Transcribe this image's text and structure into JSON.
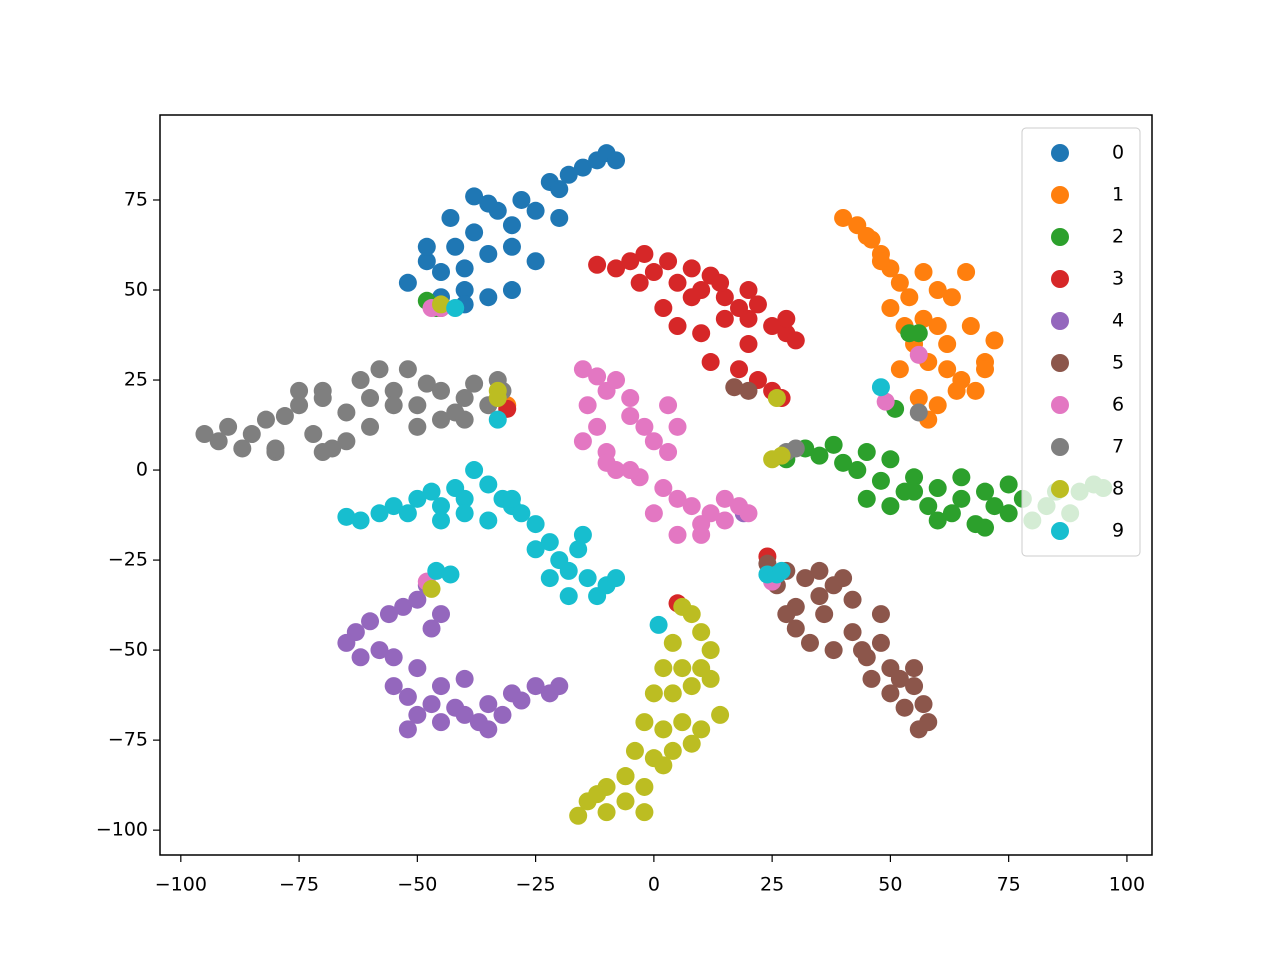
{
  "chart_data": {
    "type": "scatter",
    "xlim": [
      -104.4,
      105.3
    ],
    "ylim": [
      -106.9,
      98.6
    ],
    "xticks": [
      {
        "value": -100,
        "label": "−100"
      },
      {
        "value": -75,
        "label": "−75"
      },
      {
        "value": -50,
        "label": "−50"
      },
      {
        "value": -25,
        "label": "−25"
      },
      0,
      25,
      50,
      75,
      100
    ],
    "yticks": [
      {
        "value": -100,
        "label": "−100"
      },
      {
        "value": -75,
        "label": "−75"
      },
      {
        "value": -50,
        "label": "−50"
      },
      {
        "value": -25,
        "label": "−25"
      },
      0,
      25,
      50,
      75
    ],
    "legend": "upper right",
    "series": [
      {
        "name": "0",
        "color": "#1f77b4",
        "x": [
          -52,
          -48,
          -45,
          -42,
          -40,
          -38,
          -35,
          -33,
          -30,
          -28,
          -25,
          -22,
          -20,
          -18,
          -15,
          -12,
          -10,
          -8,
          -45,
          -40,
          -35,
          -30,
          -25,
          -40,
          -35,
          -48,
          -43,
          -38,
          -30,
          -20
        ],
        "y": [
          52,
          58,
          55,
          62,
          50,
          66,
          60,
          72,
          68,
          75,
          72,
          80,
          78,
          82,
          84,
          86,
          88,
          86,
          48,
          46,
          48,
          50,
          58,
          56,
          74,
          62,
          70,
          76,
          62,
          70
        ]
      },
      {
        "name": "1",
        "color": "#ff7f0e",
        "x": [
          40,
          43,
          46,
          48,
          50,
          52,
          50,
          54,
          57,
          60,
          55,
          58,
          62,
          65,
          68,
          70,
          72,
          60,
          63,
          66,
          52,
          56,
          60,
          64,
          58,
          62,
          45,
          48,
          53,
          57,
          70,
          67,
          -31
        ],
        "y": [
          70,
          68,
          64,
          60,
          56,
          52,
          45,
          48,
          42,
          40,
          35,
          30,
          28,
          25,
          22,
          30,
          36,
          50,
          48,
          55,
          28,
          20,
          18,
          22,
          14,
          35,
          65,
          58,
          40,
          55,
          28,
          40,
          18
        ]
      },
      {
        "name": "2",
        "color": "#2ca02c",
        "x": [
          28,
          32,
          35,
          38,
          40,
          43,
          45,
          48,
          50,
          53,
          55,
          58,
          60,
          63,
          65,
          68,
          70,
          72,
          75,
          78,
          80,
          83,
          85,
          88,
          90,
          93,
          95,
          50,
          60,
          70,
          45,
          55,
          65,
          75,
          -48,
          -46,
          54,
          56,
          51
        ],
        "y": [
          3,
          6,
          4,
          7,
          2,
          0,
          5,
          -3,
          3,
          -6,
          -2,
          -10,
          -5,
          -12,
          -8,
          -15,
          -6,
          -10,
          -12,
          -8,
          -14,
          -10,
          -6,
          -12,
          -6,
          -4,
          -5,
          -10,
          -14,
          -16,
          -8,
          -6,
          -2,
          -4,
          47,
          45,
          38,
          38,
          17
        ]
      },
      {
        "name": "3",
        "color": "#d62728",
        "x": [
          -12,
          -8,
          -5,
          -2,
          0,
          3,
          5,
          8,
          10,
          12,
          15,
          18,
          20,
          22,
          25,
          28,
          30,
          2,
          5,
          10,
          15,
          20,
          8,
          12,
          18,
          22,
          25,
          -3,
          28,
          14,
          20,
          -45,
          27,
          -31,
          24,
          5
        ],
        "y": [
          57,
          56,
          58,
          60,
          55,
          58,
          52,
          56,
          50,
          54,
          48,
          45,
          42,
          46,
          40,
          38,
          36,
          45,
          40,
          38,
          42,
          35,
          48,
          30,
          28,
          25,
          22,
          52,
          42,
          52,
          50,
          45,
          20,
          17,
          -24,
          -37
        ]
      },
      {
        "name": "4",
        "color": "#9467bd",
        "x": [
          -48,
          -50,
          -53,
          -56,
          -60,
          -63,
          -65,
          -62,
          -58,
          -55,
          -55,
          -52,
          -50,
          -47,
          -45,
          -42,
          -40,
          -37,
          -35,
          -32,
          -30,
          -28,
          -25,
          -22,
          -20,
          -50,
          -45,
          -40,
          -35,
          -52,
          -45,
          -47,
          19
        ],
        "y": [
          -32,
          -36,
          -38,
          -40,
          -42,
          -45,
          -48,
          -52,
          -50,
          -52,
          -60,
          -63,
          -68,
          -65,
          -70,
          -66,
          -68,
          -70,
          -65,
          -68,
          -62,
          -64,
          -60,
          -62,
          -60,
          -55,
          -60,
          -58,
          -72,
          -72,
          -40,
          -44,
          -12
        ]
      },
      {
        "name": "5",
        "color": "#8c564b",
        "x": [
          24,
          26,
          28,
          30,
          32,
          35,
          38,
          40,
          42,
          30,
          33,
          36,
          38,
          42,
          45,
          48,
          50,
          52,
          55,
          57,
          58,
          56,
          53,
          50,
          46,
          44,
          28,
          35,
          55,
          48,
          17,
          20
        ],
        "y": [
          -26,
          -32,
          -28,
          -38,
          -30,
          -28,
          -32,
          -30,
          -36,
          -44,
          -48,
          -40,
          -50,
          -45,
          -52,
          -48,
          -55,
          -58,
          -60,
          -65,
          -70,
          -72,
          -66,
          -62,
          -58,
          -50,
          -40,
          -35,
          -55,
          -40,
          23,
          22
        ]
      },
      {
        "name": "6",
        "color": "#e377c2",
        "x": [
          -15,
          -12,
          -10,
          -14,
          -8,
          -5,
          -12,
          -10,
          -15,
          -5,
          -2,
          0,
          3,
          -8,
          -3,
          2,
          5,
          8,
          10,
          12,
          15,
          18,
          20,
          5,
          10,
          15,
          0,
          -5,
          -10,
          5,
          3,
          -47,
          -45,
          56,
          49,
          -48,
          25
        ],
        "y": [
          28,
          26,
          22,
          18,
          25,
          20,
          12,
          5,
          8,
          15,
          12,
          8,
          5,
          0,
          -2,
          -5,
          -8,
          -10,
          -15,
          -12,
          -8,
          -10,
          -12,
          -18,
          -18,
          -14,
          -12,
          0,
          2,
          12,
          18,
          45,
          45,
          32,
          19,
          -31,
          -31
        ]
      },
      {
        "name": "7",
        "color": "#7f7f7f",
        "x": [
          -95,
          -92,
          -90,
          -87,
          -85,
          -82,
          -80,
          -78,
          -75,
          -72,
          -70,
          -68,
          -65,
          -62,
          -60,
          -58,
          -55,
          -52,
          -50,
          -48,
          -45,
          -42,
          -40,
          -38,
          -35,
          -32,
          -80,
          -70,
          -60,
          -50,
          -40,
          -75,
          -65,
          -55,
          -45,
          -70,
          -33,
          30,
          28,
          56
        ],
        "y": [
          10,
          8,
          12,
          6,
          10,
          14,
          5,
          15,
          18,
          10,
          22,
          6,
          16,
          25,
          20,
          28,
          22,
          28,
          18,
          24,
          22,
          16,
          20,
          24,
          18,
          22,
          6,
          5,
          12,
          12,
          14,
          22,
          8,
          18,
          14,
          20,
          25,
          6,
          5,
          16
        ]
      },
      {
        "name": "8",
        "color": "#bcbd22",
        "x": [
          6,
          8,
          10,
          12,
          4,
          2,
          6,
          10,
          0,
          4,
          8,
          12,
          14,
          -2,
          2,
          6,
          10,
          -4,
          0,
          4,
          8,
          -6,
          -2,
          2,
          -10,
          -6,
          -2,
          -14,
          -10,
          -16,
          -12,
          -6,
          -45,
          -33,
          -33,
          26,
          25,
          27,
          -47
        ],
        "y": [
          -38,
          -40,
          -45,
          -50,
          -48,
          -55,
          -55,
          -55,
          -62,
          -62,
          -60,
          -58,
          -68,
          -70,
          -72,
          -70,
          -72,
          -78,
          -80,
          -78,
          -76,
          -85,
          -88,
          -82,
          -88,
          -92,
          -95,
          -92,
          -95,
          -96,
          -90,
          -85,
          46,
          22,
          20,
          20,
          3,
          4,
          -33
        ]
      },
      {
        "name": "9",
        "color": "#17becf",
        "x": [
          -65,
          -62,
          -58,
          -55,
          -52,
          -50,
          -47,
          -45,
          -42,
          -40,
          -38,
          -35,
          -32,
          -30,
          -28,
          -25,
          -22,
          -20,
          -18,
          -16,
          -14,
          -12,
          -10,
          -8,
          -22,
          -18,
          -15,
          -45,
          -40,
          -35,
          -30,
          -25,
          -42,
          -33,
          48,
          1,
          -46,
          -43,
          24,
          26,
          27
        ],
        "y": [
          -13,
          -14,
          -12,
          -10,
          -12,
          -8,
          -6,
          -10,
          -5,
          -8,
          0,
          -4,
          -8,
          -10,
          -12,
          -15,
          -20,
          -25,
          -28,
          -22,
          -30,
          -35,
          -32,
          -30,
          -30,
          -35,
          -18,
          -14,
          -12,
          -14,
          -8,
          -22,
          45,
          14,
          23,
          -43,
          -28,
          -29,
          -29,
          -29,
          -28
        ]
      }
    ]
  }
}
